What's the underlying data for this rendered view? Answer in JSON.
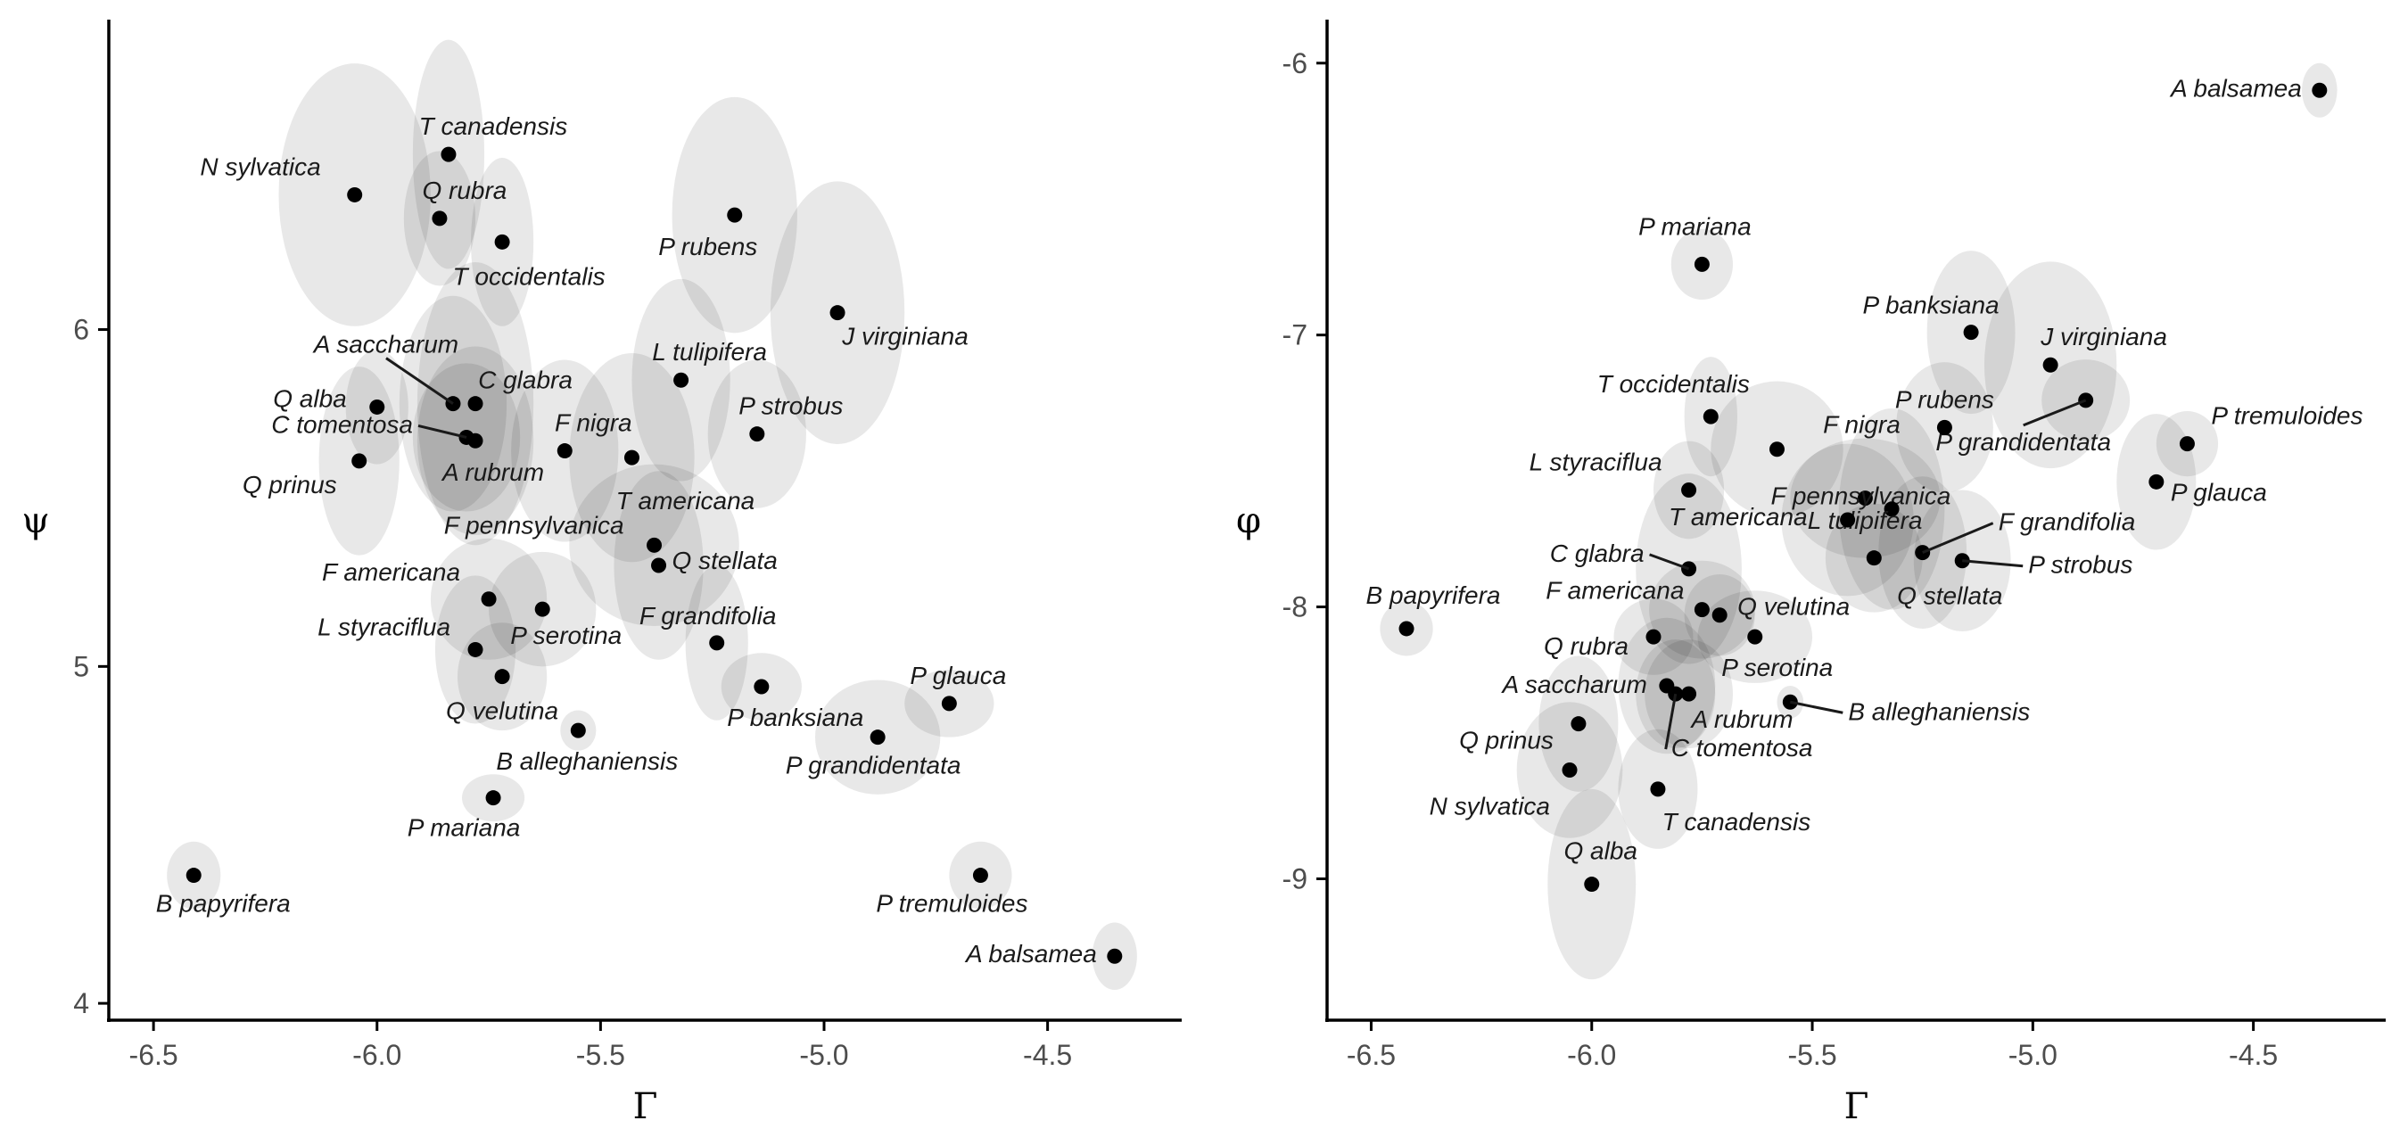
{
  "chart_data": [
    {
      "type": "scatter",
      "xlabel": "Γ",
      "ylabel": "ψ",
      "xlim": [
        -6.6,
        -4.2
      ],
      "ylim": [
        3.95,
        6.92
      ],
      "xticks": [
        -6.5,
        -6.0,
        -5.5,
        -5.0,
        -4.5
      ],
      "xtick_labels": [
        "-6.5",
        "-6.0",
        "-5.5",
        "-5.0",
        "-4.5"
      ],
      "yticks": [
        4,
        5,
        6
      ],
      "ytick_labels": [
        "4",
        "5",
        "6"
      ],
      "grid": false,
      "points": [
        {
          "label": "N sylvatica",
          "x": -6.05,
          "y": 6.4,
          "ex": 0.17,
          "ey": 0.39
        },
        {
          "label": "T canadensis",
          "x": -5.84,
          "y": 6.52,
          "ex": 0.08,
          "ey": 0.34
        },
        {
          "label": "Q rubra",
          "x": -5.86,
          "y": 6.33,
          "ex": 0.08,
          "ey": 0.2
        },
        {
          "label": "T occidentalis",
          "x": -5.72,
          "y": 6.26,
          "ex": 0.07,
          "ey": 0.25
        },
        {
          "label": "P rubens",
          "x": -5.2,
          "y": 6.34,
          "ex": 0.14,
          "ey": 0.35
        },
        {
          "label": "J virginiana",
          "x": -4.97,
          "y": 6.05,
          "ex": 0.15,
          "ey": 0.39
        },
        {
          "label": "A saccharum",
          "x": -5.83,
          "y": 5.78,
          "ex": 0.12,
          "ey": 0.32
        },
        {
          "label": "C glabra",
          "x": -5.78,
          "y": 5.78,
          "ex": 0.13,
          "ey": 0.42
        },
        {
          "label": "Q alba",
          "x": -6.0,
          "y": 5.77,
          "ex": 0.07,
          "ey": 0.17
        },
        {
          "label": "C tomentosa",
          "x": -5.8,
          "y": 5.68,
          "ex": 0.12,
          "ey": 0.22
        },
        {
          "label": "A rubrum",
          "x": -5.78,
          "y": 5.67,
          "ex": 0.13,
          "ey": 0.28
        },
        {
          "label": "Q prinus",
          "x": -6.04,
          "y": 5.61,
          "ex": 0.09,
          "ey": 0.28
        },
        {
          "label": "L tulipifera",
          "x": -5.32,
          "y": 5.85,
          "ex": 0.11,
          "ey": 0.3
        },
        {
          "label": "P strobus",
          "x": -5.15,
          "y": 5.69,
          "ex": 0.11,
          "ey": 0.22
        },
        {
          "label": "F nigra",
          "x": -5.58,
          "y": 5.64,
          "ex": 0.12,
          "ey": 0.27
        },
        {
          "label": "T americana",
          "x": -5.43,
          "y": 5.62,
          "ex": 0.14,
          "ey": 0.31
        },
        {
          "label": "F pennsylvanica",
          "x": -5.38,
          "y": 5.36,
          "ex": 0.19,
          "ey": 0.24
        },
        {
          "label": "Q stellata",
          "x": -5.37,
          "y": 5.3,
          "ex": 0.1,
          "ey": 0.28
        },
        {
          "label": "F americana",
          "x": -5.75,
          "y": 5.2,
          "ex": 0.13,
          "ey": 0.18
        },
        {
          "label": "P serotina",
          "x": -5.63,
          "y": 5.17,
          "ex": 0.12,
          "ey": 0.17
        },
        {
          "label": "L styraciflua",
          "x": -5.78,
          "y": 5.05,
          "ex": 0.09,
          "ey": 0.22
        },
        {
          "label": "F grandifolia",
          "x": -5.24,
          "y": 5.07,
          "ex": 0.07,
          "ey": 0.23
        },
        {
          "label": "Q velutina",
          "x": -5.72,
          "y": 4.97,
          "ex": 0.1,
          "ey": 0.16
        },
        {
          "label": "P banksiana",
          "x": -5.14,
          "y": 4.94,
          "ex": 0.09,
          "ey": 0.1
        },
        {
          "label": "P glauca",
          "x": -4.72,
          "y": 4.89,
          "ex": 0.1,
          "ey": 0.1
        },
        {
          "label": "B alleghaniensis",
          "x": -5.55,
          "y": 4.81,
          "ex": 0.04,
          "ey": 0.06
        },
        {
          "label": "P grandidentata",
          "x": -4.88,
          "y": 4.79,
          "ex": 0.14,
          "ey": 0.17
        },
        {
          "label": "P mariana",
          "x": -5.74,
          "y": 4.61,
          "ex": 0.07,
          "ey": 0.07
        },
        {
          "label": "B papyrifera",
          "x": -6.41,
          "y": 4.38,
          "ex": 0.06,
          "ey": 0.1
        },
        {
          "label": "P tremuloides",
          "x": -4.65,
          "y": 4.38,
          "ex": 0.07,
          "ey": 0.1
        },
        {
          "label": "A balsamea",
          "x": -4.35,
          "y": 4.14,
          "ex": 0.05,
          "ey": 0.1
        }
      ]
    },
    {
      "type": "scatter",
      "xlabel": "Γ",
      "ylabel": "φ",
      "xlim": [
        -6.6,
        -4.2
      ],
      "ylim": [
        -9.52,
        -5.84
      ],
      "xticks": [
        -6.5,
        -6.0,
        -5.5,
        -5.0,
        -4.5
      ],
      "xtick_labels": [
        "-6.5",
        "-6.0",
        "-5.5",
        "-5.0",
        "-4.5"
      ],
      "yticks": [
        -9,
        -8,
        -7,
        -6
      ],
      "ytick_labels": [
        "-9",
        "-8",
        "-7",
        "-6"
      ],
      "grid": false,
      "points": [
        {
          "label": "A balsamea",
          "x": -4.35,
          "y": -6.1,
          "ex": 0.04,
          "ey": 0.1
        },
        {
          "label": "P mariana",
          "x": -5.75,
          "y": -6.74,
          "ex": 0.07,
          "ey": 0.13
        },
        {
          "label": "P banksiana",
          "x": -5.14,
          "y": -6.99,
          "ex": 0.1,
          "ey": 0.3
        },
        {
          "label": "J virginiana",
          "x": -4.96,
          "y": -7.11,
          "ex": 0.15,
          "ey": 0.38
        },
        {
          "label": "P grandidentata",
          "x": -4.88,
          "y": -7.24,
          "ex": 0.1,
          "ey": 0.15
        },
        {
          "label": "T occidentalis",
          "x": -5.73,
          "y": -7.3,
          "ex": 0.06,
          "ey": 0.22
        },
        {
          "label": "P rubens",
          "x": -5.2,
          "y": -7.34,
          "ex": 0.11,
          "ey": 0.24
        },
        {
          "label": "F nigra",
          "x": -5.58,
          "y": -7.42,
          "ex": 0.15,
          "ey": 0.25
        },
        {
          "label": "P tremuloides",
          "x": -4.65,
          "y": -7.4,
          "ex": 0.07,
          "ey": 0.12
        },
        {
          "label": "P glauca",
          "x": -4.72,
          "y": -7.54,
          "ex": 0.09,
          "ey": 0.25
        },
        {
          "label": "L styraciflua",
          "x": -5.78,
          "y": -7.57,
          "ex": 0.08,
          "ey": 0.18
        },
        {
          "label": "F pennsylvanica",
          "x": -5.38,
          "y": -7.6,
          "ex": 0.17,
          "ey": 0.22
        },
        {
          "label": "L tulipifera",
          "x": -5.32,
          "y": -7.64,
          "ex": 0.12,
          "ey": 0.37
        },
        {
          "label": "T americana",
          "x": -5.42,
          "y": -7.68,
          "ex": 0.15,
          "ey": 0.28
        },
        {
          "label": "F grandifolia",
          "x": -5.25,
          "y": -7.8,
          "ex": 0.1,
          "ey": 0.28
        },
        {
          "label": "Q stellata",
          "x": -5.36,
          "y": -7.82,
          "ex": 0.11,
          "ey": 0.2
        },
        {
          "label": "P strobus",
          "x": -5.16,
          "y": -7.83,
          "ex": 0.11,
          "ey": 0.26
        },
        {
          "label": "C glabra",
          "x": -5.78,
          "y": -7.86,
          "ex": 0.12,
          "ey": 0.35
        },
        {
          "label": "B papyrifera",
          "x": -6.42,
          "y": -8.08,
          "ex": 0.06,
          "ey": 0.1
        },
        {
          "label": "F americana",
          "x": -5.75,
          "y": -8.01,
          "ex": 0.12,
          "ey": 0.18
        },
        {
          "label": "Q velutina",
          "x": -5.71,
          "y": -8.03,
          "ex": 0.08,
          "ey": 0.15
        },
        {
          "label": "Q rubra",
          "x": -5.86,
          "y": -8.11,
          "ex": 0.09,
          "ey": 0.14
        },
        {
          "label": "P serotina",
          "x": -5.63,
          "y": -8.11,
          "ex": 0.13,
          "ey": 0.17
        },
        {
          "label": "A saccharum",
          "x": -5.83,
          "y": -8.29,
          "ex": 0.11,
          "ey": 0.25
        },
        {
          "label": "A rubrum",
          "x": -5.78,
          "y": -8.32,
          "ex": 0.1,
          "ey": 0.2
        },
        {
          "label": "C tomentosa",
          "x": -5.81,
          "y": -8.32,
          "ex": 0.09,
          "ey": 0.2
        },
        {
          "label": "B alleghaniensis",
          "x": -5.55,
          "y": -8.35,
          "ex": 0.03,
          "ey": 0.06
        },
        {
          "label": "Q prinus",
          "x": -6.03,
          "y": -8.43,
          "ex": 0.09,
          "ey": 0.25
        },
        {
          "label": "N sylvatica",
          "x": -6.05,
          "y": -8.6,
          "ex": 0.12,
          "ey": 0.25
        },
        {
          "label": "T canadensis",
          "x": -5.85,
          "y": -8.67,
          "ex": 0.09,
          "ey": 0.22
        },
        {
          "label": "Q alba",
          "x": -6.0,
          "y": -9.02,
          "ex": 0.1,
          "ey": 0.35
        }
      ]
    }
  ]
}
